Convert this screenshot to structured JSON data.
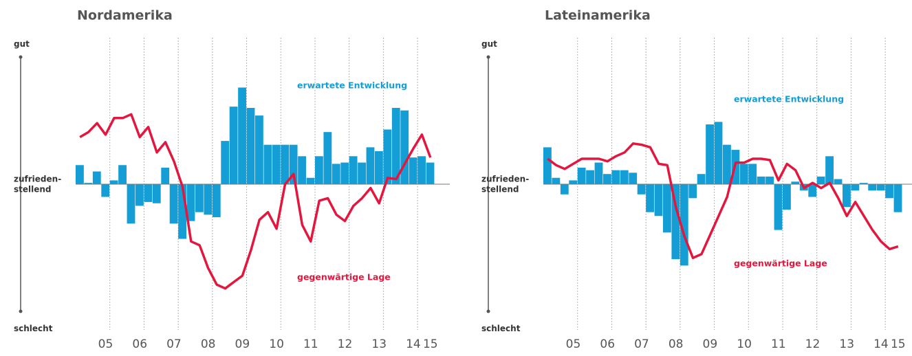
{
  "chart_data": [
    {
      "type": "combo",
      "title": "Nordamerika",
      "categories": [
        null,
        null,
        null,
        "05",
        null,
        null,
        null,
        "06",
        null,
        null,
        null,
        "07",
        null,
        null,
        null,
        "08",
        null,
        null,
        null,
        "09",
        null,
        null,
        null,
        "10",
        null,
        null,
        null,
        "11",
        null,
        null,
        null,
        "12",
        null,
        null,
        null,
        "13",
        null,
        null,
        null,
        "14",
        null,
        "15"
      ],
      "series": [
        {
          "name": "erwartete Entwicklung",
          "type": "bar",
          "color": "#149ed5",
          "values": [
            15,
            1,
            10,
            -10,
            3,
            15,
            -31,
            -17,
            -14,
            -15,
            13,
            -31,
            -43,
            -29,
            -22,
            -24,
            -26,
            34,
            61,
            76,
            60,
            54,
            31,
            31,
            31,
            31,
            22,
            5,
            22,
            41,
            16,
            17,
            22,
            17,
            29,
            26,
            43,
            60,
            58,
            21,
            22,
            17
          ]
        },
        {
          "name": "gegenwärtige Lage",
          "type": "line",
          "color": "#e3173e",
          "values": [
            37,
            41,
            48,
            39,
            52,
            52,
            55,
            37,
            45,
            25,
            33,
            18,
            -2,
            -45,
            -48,
            -66,
            -79,
            -82,
            -77,
            -72,
            -52,
            -28,
            -22,
            -35,
            0,
            8,
            -32,
            -45,
            -13,
            -11,
            -24,
            -29,
            -17,
            -11,
            -3,
            -15,
            5,
            4,
            16,
            28,
            39,
            21
          ]
        }
      ],
      "ylim": [
        -100,
        100
      ],
      "yticks": [
        {
          "value": 100,
          "label": "gut"
        },
        {
          "value": 0,
          "label": "zufrieden-\nstellend"
        },
        {
          "value": -100,
          "label": "schlecht"
        }
      ]
    },
    {
      "type": "combo",
      "title": "Lateinamerika",
      "categories": [
        null,
        null,
        null,
        "05",
        null,
        null,
        null,
        "06",
        null,
        null,
        null,
        "07",
        null,
        null,
        null,
        "08",
        null,
        null,
        null,
        "09",
        null,
        null,
        null,
        "10",
        null,
        null,
        null,
        "11",
        null,
        null,
        null,
        "12",
        null,
        null,
        null,
        "13",
        null,
        null,
        null,
        "14",
        null,
        "15"
      ],
      "series": [
        {
          "name": "erwartete Entwicklung",
          "type": "bar",
          "color": "#149ed5",
          "values": [
            29,
            5,
            -8,
            3,
            13,
            11,
            17,
            8,
            11,
            11,
            9,
            -8,
            -22,
            -25,
            -38,
            -59,
            -64,
            -11,
            8,
            47,
            49,
            31,
            27,
            16,
            16,
            6,
            6,
            -36,
            -20,
            2,
            -5,
            -10,
            6,
            22,
            4,
            -18,
            -5,
            1,
            -5,
            -5,
            -11,
            -22
          ]
        },
        {
          "name": "gegenwärtige Lage",
          "type": "line",
          "color": "#e3173e",
          "values": [
            20,
            15,
            12,
            16,
            20,
            20,
            20,
            18,
            22,
            25,
            32,
            31,
            29,
            16,
            15,
            -18,
            -41,
            -58,
            -55,
            -40,
            -25,
            -10,
            17,
            17,
            20,
            20,
            19,
            3,
            16,
            11,
            -3,
            1,
            -3,
            1,
            -11,
            -25,
            -14,
            -25,
            -36,
            -45,
            -51,
            -49
          ]
        }
      ],
      "ylim": [
        -100,
        100
      ],
      "yticks": [
        {
          "value": 100,
          "label": "gut"
        },
        {
          "value": 0,
          "label": "zufrieden-\nstellend"
        },
        {
          "value": -100,
          "label": "schlecht"
        }
      ]
    }
  ]
}
